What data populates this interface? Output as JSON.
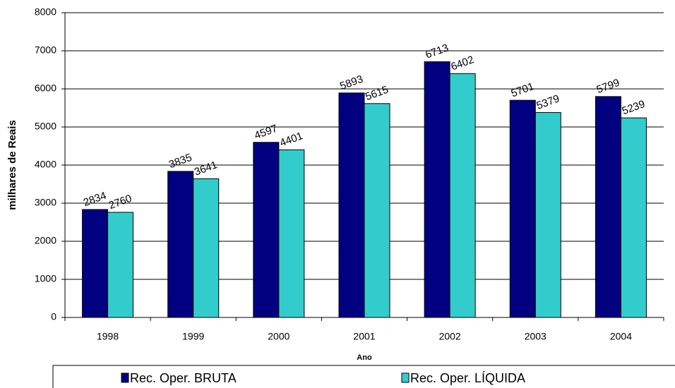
{
  "chart_data": {
    "type": "bar",
    "x_label": "Ano",
    "y_label": "milhares de Reais",
    "categories": [
      "1998",
      "1999",
      "2000",
      "2001",
      "2002",
      "2003",
      "2004"
    ],
    "series": [
      {
        "name": "Rec. Oper. BRUTA",
        "color": "#000080",
        "values": [
          2834,
          3835,
          4597,
          5893,
          6713,
          5701,
          5799
        ]
      },
      {
        "name": "Rec. Oper. LÍQUIDA",
        "color": "#33CCCC",
        "values": [
          2760,
          3641,
          4401,
          5615,
          6402,
          5379,
          5239
        ]
      }
    ],
    "ylim": [
      0,
      8000
    ],
    "yticks": [
      0,
      1000,
      2000,
      3000,
      4000,
      5000,
      6000,
      7000,
      8000
    ],
    "grid": true
  }
}
